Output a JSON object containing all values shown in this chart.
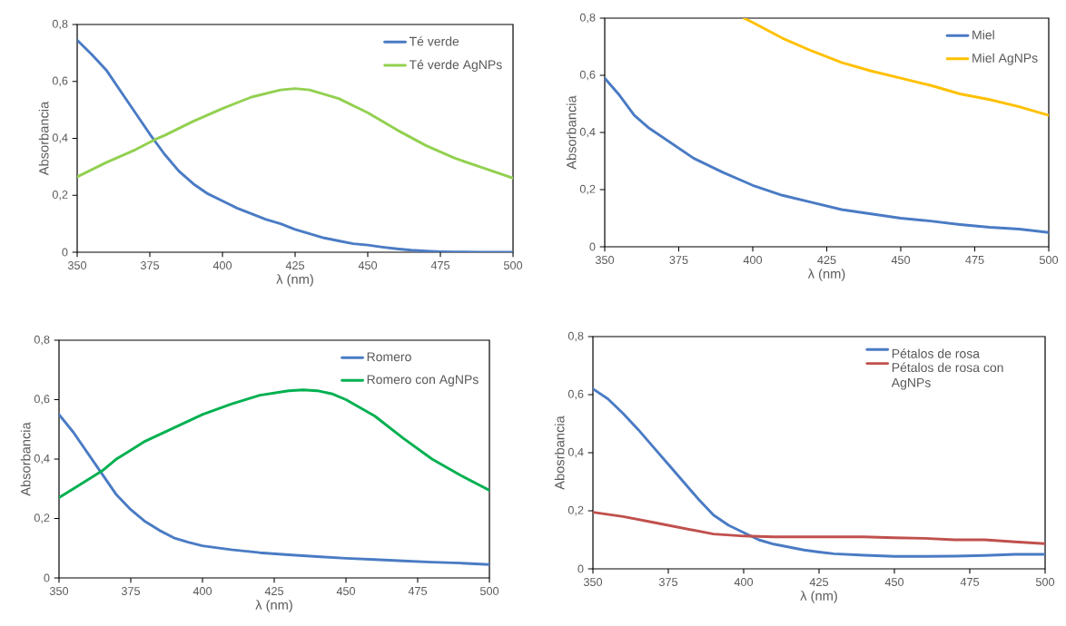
{
  "chart_data": [
    {
      "type": "line",
      "xlabel": "λ (nm)",
      "ylabel": "Absorbancia",
      "xlim": [
        350,
        500
      ],
      "ylim": [
        0,
        0.8
      ],
      "xticks": [
        350,
        375,
        400,
        425,
        450,
        475,
        500
      ],
      "yticks": [
        0,
        {
          "value": 0.2,
          "label": "0,2"
        },
        {
          "value": 0.4,
          "label": "0,4"
        },
        {
          "value": 0.6,
          "label": "0,6"
        },
        {
          "value": 0.8,
          "label": "0,8"
        }
      ],
      "legend": "top right",
      "series": [
        {
          "name": "Té verde",
          "color": "#4a7bc4",
          "x": [
            350,
            355,
            360,
            365,
            370,
            375,
            380,
            385,
            390,
            395,
            400,
            405,
            410,
            415,
            420,
            425,
            430,
            435,
            440,
            445,
            450,
            455,
            460,
            465,
            470,
            475,
            480,
            490,
            500
          ],
          "values": [
            0.745,
            0.695,
            0.64,
            0.565,
            0.49,
            0.415,
            0.345,
            0.285,
            0.24,
            0.205,
            0.18,
            0.155,
            0.135,
            0.115,
            0.1,
            0.08,
            0.065,
            0.05,
            0.04,
            0.03,
            0.025,
            0.018,
            0.012,
            0.007,
            0.004,
            0.002,
            0.001,
            0,
            0
          ]
        },
        {
          "name": "Té verde AgNPs",
          "color": "#92d050",
          "x": [
            350,
            360,
            370,
            377,
            380,
            390,
            400,
            410,
            420,
            425,
            430,
            440,
            450,
            460,
            470,
            480,
            490,
            500
          ],
          "values": [
            0.265,
            0.315,
            0.36,
            0.397,
            0.41,
            0.46,
            0.505,
            0.545,
            0.57,
            0.575,
            0.57,
            0.54,
            0.49,
            0.43,
            0.375,
            0.33,
            0.295,
            0.26
          ]
        }
      ]
    },
    {
      "type": "line",
      "xlabel": "λ (nm)",
      "ylabel": "Absorbancia",
      "xlim": [
        350,
        500
      ],
      "ylim": [
        0,
        0.8
      ],
      "xticks": [
        350,
        375,
        400,
        425,
        450,
        475,
        500
      ],
      "yticks": [
        0,
        {
          "value": 0.2,
          "label": "0,2"
        },
        {
          "value": 0.4,
          "label": "0,4"
        },
        {
          "value": 0.6,
          "label": "0,6"
        },
        {
          "value": 0.8,
          "label": "0,8"
        }
      ],
      "legend": "top right",
      "series": [
        {
          "name": "Miel",
          "color": "#4a7bc4",
          "x": [
            350,
            355,
            360,
            365,
            370,
            375,
            380,
            390,
            400,
            410,
            420,
            430,
            440,
            450,
            460,
            470,
            480,
            490,
            500
          ],
          "values": [
            0.59,
            0.53,
            0.46,
            0.415,
            0.38,
            0.345,
            0.31,
            0.26,
            0.215,
            0.18,
            0.155,
            0.13,
            0.115,
            0.1,
            0.09,
            0.078,
            0.068,
            0.062,
            0.05
          ]
        },
        {
          "name": "Miel AgNPs",
          "color": "#ffc000",
          "x": [
            397,
            400,
            410,
            420,
            430,
            440,
            450,
            460,
            470,
            480,
            490,
            500
          ],
          "values": [
            0.8,
            0.785,
            0.73,
            0.685,
            0.645,
            0.615,
            0.59,
            0.565,
            0.535,
            0.515,
            0.49,
            0.46
          ]
        }
      ]
    },
    {
      "type": "line",
      "xlabel": "λ (nm)",
      "ylabel": "Absorbancia",
      "xlim": [
        350,
        500
      ],
      "ylim": [
        0,
        0.8
      ],
      "xticks": [
        350,
        375,
        400,
        425,
        450,
        475,
        500
      ],
      "yticks": [
        0,
        {
          "value": 0.2,
          "label": "0,2"
        },
        {
          "value": 0.4,
          "label": "0,4"
        },
        {
          "value": 0.6,
          "label": "0,6"
        },
        {
          "value": 0.8,
          "label": "0,8"
        }
      ],
      "legend": "top right",
      "series": [
        {
          "name": "Romero",
          "color": "#4a7bc4",
          "x": [
            350,
            355,
            360,
            365,
            370,
            375,
            380,
            385,
            390,
            395,
            400,
            410,
            420,
            430,
            440,
            450,
            460,
            470,
            480,
            490,
            500
          ],
          "values": [
            0.55,
            0.49,
            0.42,
            0.35,
            0.28,
            0.23,
            0.19,
            0.16,
            0.135,
            0.12,
            0.108,
            0.095,
            0.085,
            0.078,
            0.072,
            0.066,
            0.062,
            0.057,
            0.053,
            0.05,
            0.045
          ]
        },
        {
          "name": "Romero con AgNPs",
          "color": "#00b050",
          "x": [
            350,
            355,
            360,
            365,
            370,
            375,
            380,
            390,
            400,
            410,
            420,
            430,
            435,
            440,
            445,
            450,
            460,
            470,
            480,
            490,
            500
          ],
          "values": [
            0.27,
            0.3,
            0.33,
            0.36,
            0.4,
            0.43,
            0.46,
            0.505,
            0.55,
            0.585,
            0.615,
            0.63,
            0.633,
            0.63,
            0.62,
            0.6,
            0.545,
            0.47,
            0.4,
            0.345,
            0.295
          ]
        }
      ]
    },
    {
      "type": "line",
      "xlabel": "λ (nm)",
      "ylabel": "Abosrbancia",
      "xlim": [
        350,
        500
      ],
      "ylim": [
        0,
        0.8
      ],
      "xticks": [
        350,
        375,
        400,
        425,
        450,
        475,
        500
      ],
      "yticks": [
        0,
        {
          "value": 0.2,
          "label": "0,2"
        },
        {
          "value": 0.4,
          "label": "0,4"
        },
        {
          "value": 0.6,
          "label": "0,6"
        },
        {
          "value": 0.8,
          "label": "0,8"
        }
      ],
      "legend": "top right",
      "series": [
        {
          "name": "Pétalos de rosa",
          "color": "#4a7bc4",
          "x": [
            350,
            355,
            360,
            365,
            370,
            375,
            380,
            385,
            390,
            395,
            400,
            405,
            410,
            415,
            420,
            425,
            430,
            440,
            450,
            460,
            470,
            480,
            490,
            500
          ],
          "values": [
            0.62,
            0.585,
            0.535,
            0.48,
            0.42,
            0.36,
            0.3,
            0.24,
            0.185,
            0.15,
            0.125,
            0.1,
            0.085,
            0.075,
            0.065,
            0.058,
            0.052,
            0.047,
            0.043,
            0.043,
            0.044,
            0.046,
            0.05,
            0.05
          ]
        },
        {
          "name": "Pétalos de rosa con AgNPs",
          "color": "#c0504d",
          "x": [
            350,
            360,
            370,
            380,
            390,
            400,
            410,
            420,
            430,
            440,
            450,
            460,
            470,
            480,
            490,
            500
          ],
          "values": [
            0.195,
            0.18,
            0.16,
            0.14,
            0.12,
            0.113,
            0.11,
            0.11,
            0.11,
            0.11,
            0.107,
            0.105,
            0.1,
            0.1,
            0.093,
            0.087
          ]
        }
      ]
    }
  ]
}
